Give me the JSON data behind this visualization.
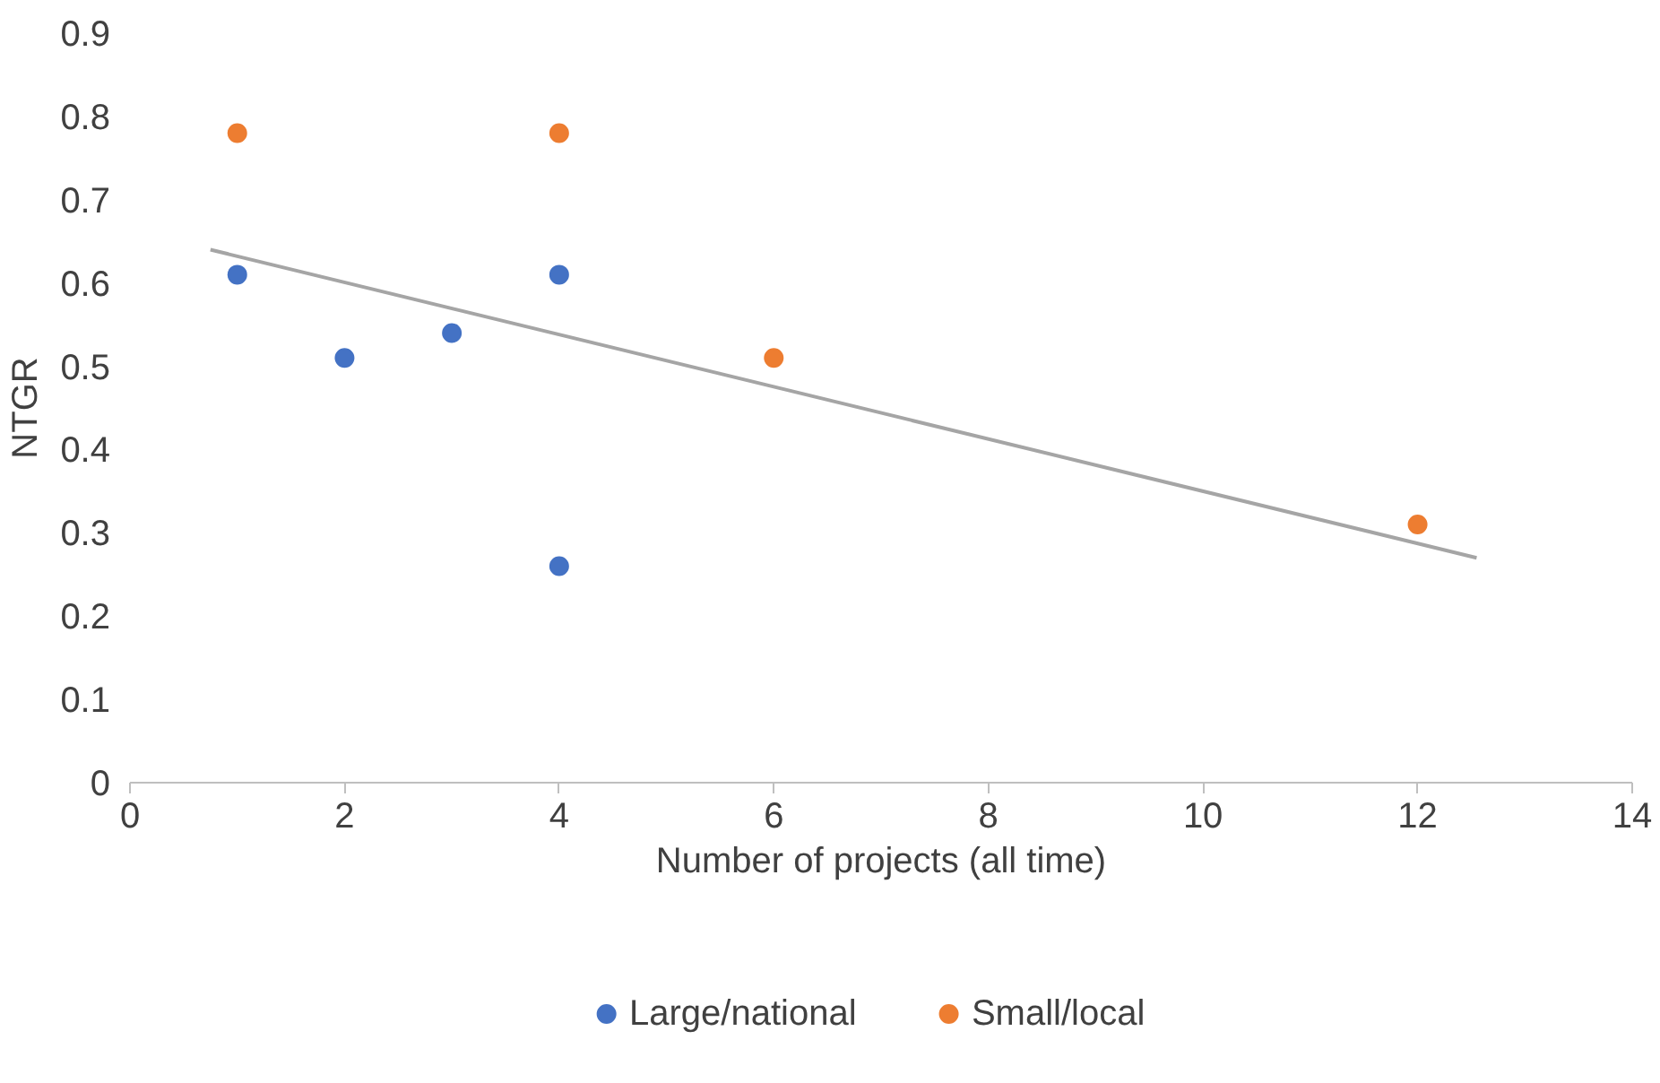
{
  "chart_data": {
    "type": "scatter",
    "xlabel": "Number of projects (all time)",
    "ylabel": "NTGR",
    "xlim": [
      0,
      14
    ],
    "xticks": [
      0,
      2,
      4,
      6,
      8,
      10,
      12,
      14
    ],
    "ylim": [
      0,
      0.9
    ],
    "yticks": [
      0,
      0.1,
      0.2,
      0.3,
      0.4,
      0.5,
      0.6,
      0.7,
      0.8,
      0.9
    ],
    "grid": false,
    "legend": "bottom",
    "marker": "circle",
    "series": [
      {
        "name": "Large/national",
        "color": "#4472c4",
        "x": [
          1,
          2,
          3,
          4,
          4
        ],
        "values": [
          0.61,
          0.51,
          0.54,
          0.61,
          0.26
        ]
      },
      {
        "name": "Small/local",
        "color": "#ed7d31",
        "x": [
          1,
          4,
          6,
          12
        ],
        "values": [
          0.78,
          0.78,
          0.51,
          0.31
        ]
      },
      {
        "type": "line",
        "marker": "none",
        "color": "#a5a5a5",
        "x": [
          0.75,
          12.55
        ],
        "values": [
          0.64,
          0.27
        ]
      }
    ]
  }
}
